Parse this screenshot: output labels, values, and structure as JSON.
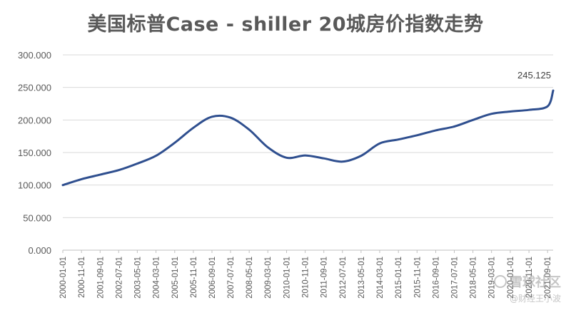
{
  "chart_data": {
    "type": "line",
    "title": "美国标普Case - shiller 20城房价指数走势",
    "xlabel": "",
    "ylabel": "",
    "ylim": [
      0,
      300
    ],
    "yticks": [
      "0.000",
      "50.000",
      "100.000",
      "150.000",
      "200.000",
      "250.000",
      "300.000"
    ],
    "grid": true,
    "legend": "none",
    "line_color": "#2f4f8f",
    "x": [
      "2000-01-01",
      "2000-11-01",
      "2001-09-01",
      "2002-07-01",
      "2003-05-01",
      "2004-03-01",
      "2005-01-01",
      "2005-11-01",
      "2006-09-01",
      "2007-07-01",
      "2008-05-01",
      "2009-03-01",
      "2010-01-01",
      "2010-11-01",
      "2011-09-01",
      "2012-07-01",
      "2013-05-01",
      "2014-03-01",
      "2015-01-01",
      "2015-11-01",
      "2016-09-01",
      "2017-07-01",
      "2018-05-01",
      "2019-03-01",
      "2020-01-01",
      "2020-11-01",
      "2021-09-01",
      "2021-12-01"
    ],
    "xtick_labels": [
      "2000-01-01",
      "2000-11-01",
      "2001-09-01",
      "2002-07-01",
      "2003-05-01",
      "2004-03-01",
      "2005-01-01",
      "2005-11-01",
      "2006-09-01",
      "2007-07-01",
      "2008-05-01",
      "2009-03-01",
      "2010-01-01",
      "2010-11-01",
      "2011-09-01",
      "2012-07-01",
      "2013-05-01",
      "2014-03-01",
      "2015-01-01",
      "2015-11-01",
      "2016-09-01",
      "2017-07-01",
      "2018-05-01",
      "2019-03-01",
      "2020-01-01",
      "2020-11-01",
      "2021-09-01"
    ],
    "series": [
      {
        "name": "",
        "values": [
          100.0,
          109.0,
          116.0,
          123.0,
          133.0,
          145.0,
          165.0,
          188.0,
          205.0,
          203.5,
          185.0,
          158.0,
          142.0,
          145.5,
          141.0,
          136.0,
          145.0,
          164.0,
          170.0,
          176.5,
          184.0,
          190.0,
          200.0,
          209.5,
          213.0,
          215.5,
          221.0,
          245.125
        ]
      }
    ],
    "annotations": [
      {
        "text": "245.125",
        "x": "2021-12-01",
        "y": 245.125
      }
    ]
  },
  "watermark": {
    "name": "雪球社区",
    "sub": "@财经王小波"
  }
}
